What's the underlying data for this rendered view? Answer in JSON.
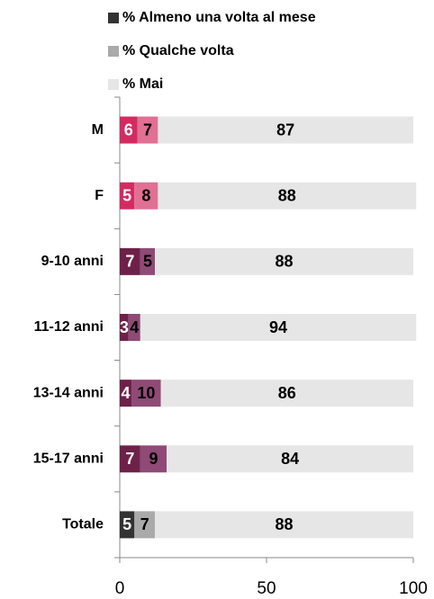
{
  "chart_data": {
    "type": "stacked-bar-horizontal",
    "categories": [
      "M",
      "F",
      "9-10 anni",
      "11-12 anni",
      "13-14 anni",
      "15-17 anni",
      "Totale"
    ],
    "series": [
      {
        "name": "% Almeno una volta al mese",
        "color": "#333333",
        "colors": [
          "#d42a62",
          "#d42a62",
          "#6e2148",
          "#6e2148",
          "#6e2148",
          "#6e2148",
          "#333333"
        ],
        "label_color": "#ffffff",
        "values": [
          6,
          5,
          7,
          3,
          4,
          7,
          5
        ]
      },
      {
        "name": "% Qualche volta",
        "color": "#aaaaaa",
        "colors": [
          "#e07094",
          "#e07094",
          "#8f4a75",
          "#8f4a75",
          "#8f4a75",
          "#8f4a75",
          "#aaaaaa"
        ],
        "label_color": "#000000",
        "values": [
          7,
          8,
          5,
          4,
          10,
          9,
          7
        ]
      },
      {
        "name": "% Mai",
        "color": "#e6e6e6",
        "colors": [
          "#e6e6e6",
          "#e6e6e6",
          "#e6e6e6",
          "#e6e6e6",
          "#e6e6e6",
          "#e6e6e6",
          "#e6e6e6"
        ],
        "label_color": "#000000",
        "values": [
          87,
          88,
          88,
          94,
          86,
          84,
          88
        ]
      }
    ],
    "xlim": [
      0,
      100
    ],
    "xticks": [
      0,
      50,
      100
    ]
  }
}
